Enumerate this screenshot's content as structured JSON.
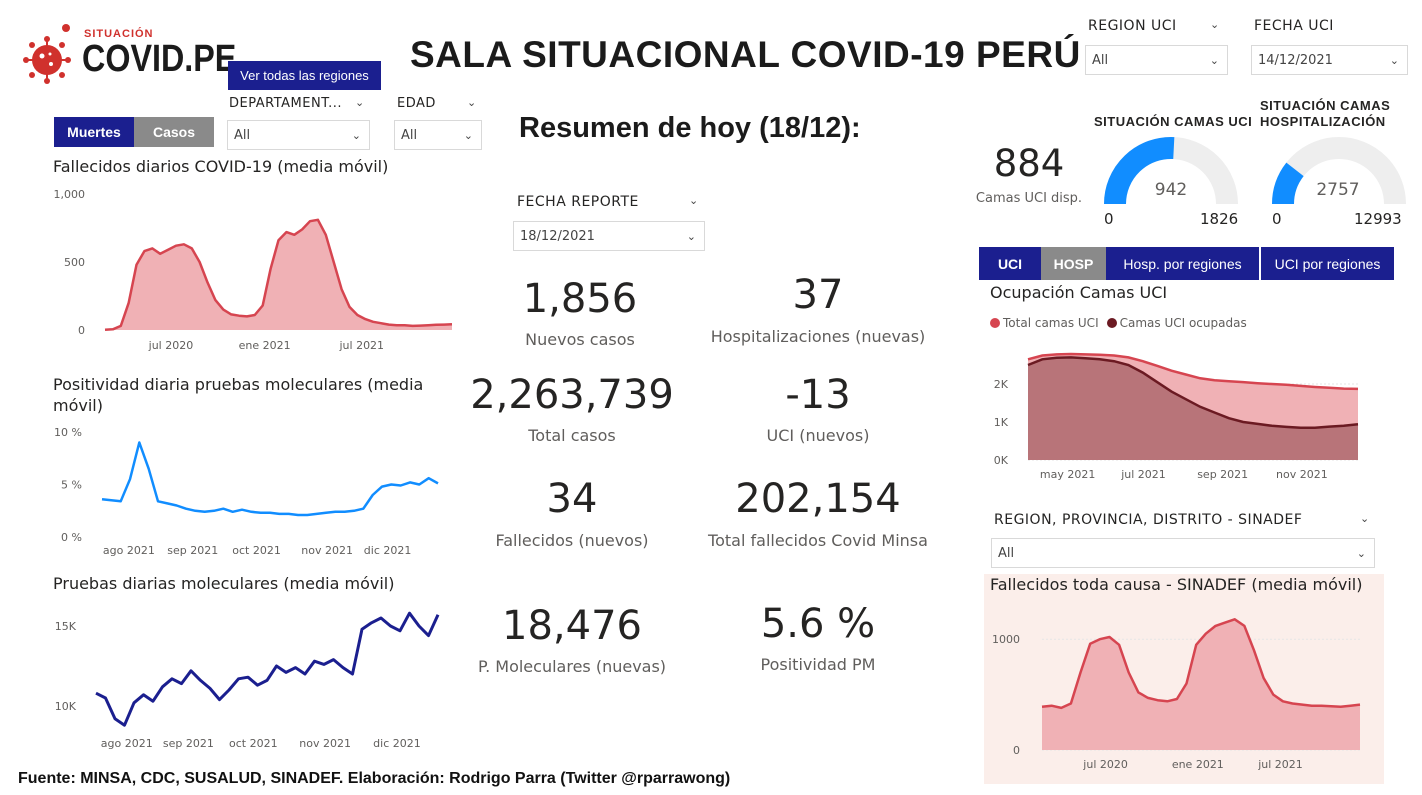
{
  "header": {
    "logo_top": "SITUACIÓN",
    "logo_main": "COVID.PE",
    "title": "SALA SITUACIONAL COVID-19 PERÚ",
    "all_regions_button": "Ver todas las regiones",
    "summary_title": "Resumen de hoy (18/12):"
  },
  "tabs_left": {
    "deaths": "Muertes",
    "cases": "Casos"
  },
  "slicers": {
    "departamento": {
      "label": "DEPARTAMENT...",
      "value": "All"
    },
    "edad": {
      "label": "EDAD",
      "value": "All"
    },
    "region_uci": {
      "label": "REGION UCI",
      "value": "All"
    },
    "fecha_uci": {
      "label": "FECHA UCI",
      "value": "14/12/2021"
    },
    "fecha_reporte": {
      "label": "FECHA REPORTE",
      "value": "18/12/2021"
    },
    "sinadef_region": {
      "label": "REGION, PROVINCIA, DISTRITO - SINADEF",
      "value": "All"
    }
  },
  "kpis": [
    {
      "value": "1,856",
      "label": "Nuevos casos"
    },
    {
      "value": "37",
      "label": "Hospitalizaciones (nuevas)"
    },
    {
      "value": "2,263,739",
      "label": "Total casos"
    },
    {
      "value": "-13",
      "label": "UCI (nuevos)"
    },
    {
      "value": "34",
      "label": "Fallecidos  (nuevos)"
    },
    {
      "value": "202,154",
      "label": "Total fallecidos Covid Minsa"
    },
    {
      "value": "18,476",
      "label": "P. Moleculares (nuevas)"
    },
    {
      "value": "5.6 %",
      "label": "Positividad PM"
    }
  ],
  "uci_available": {
    "value": "884",
    "label": "Camas UCI disp."
  },
  "gauges": [
    {
      "title": "SITUACIÓN CAMAS UCI",
      "value": 942,
      "value_label": "942",
      "min": "0",
      "max": "1826",
      "max_value": 1826,
      "color": "#118dff"
    },
    {
      "title_line1": "SITUACIÓN CAMAS",
      "title_line2": "HOSPITALIZACIÓN",
      "value": 2757,
      "value_label": "2757",
      "min": "0",
      "max": "12993",
      "max_value": 12993,
      "color": "#118dff"
    }
  ],
  "tabs_right": {
    "uci": "UCI",
    "hosp": "HOSP",
    "hosp_regions": "Hosp. por regiones",
    "uci_regions": "UCI por regiones"
  },
  "colors": {
    "deaths": "#d64550",
    "deaths_fill": "#f0b1b5",
    "positivity": "#118dff",
    "tests": "#1b1f8f",
    "uci_occupied": "#6b1a22",
    "sinadef_bg": "#fbeeea",
    "navy": "#1b1f8f"
  },
  "footer": "Fuente: MINSA, CDC, SUSALUD, SINADEF. Elaboración: Rodrigo Parra (Twitter @rparrawong)",
  "chart_data": [
    {
      "id": "deaths",
      "type": "area",
      "title": "Fallecidos diarios COVID-19 (media móvil)",
      "y_ticks": [
        "1,000",
        "500",
        "0"
      ],
      "ylim": [
        0,
        1000
      ],
      "x_ticks": [
        "jul 2020",
        "ene 2021",
        "jul 2021"
      ],
      "x_tick_pos": [
        0.19,
        0.46,
        0.74
      ],
      "values": [
        2,
        5,
        30,
        200,
        480,
        580,
        600,
        560,
        590,
        620,
        630,
        600,
        500,
        350,
        220,
        150,
        115,
        105,
        100,
        110,
        180,
        450,
        660,
        720,
        700,
        740,
        800,
        810,
        700,
        500,
        300,
        170,
        110,
        80,
        60,
        50,
        40,
        35,
        35,
        30,
        32,
        35,
        38,
        40,
        42
      ]
    },
    {
      "id": "positivity",
      "type": "line",
      "title": "Positividad diaria pruebas moleculares (media móvil)",
      "y_ticks": [
        "10 %",
        "5 %",
        "0 %"
      ],
      "ylim": [
        0,
        10
      ],
      "x_ticks": [
        "ago 2021",
        "sep 2021",
        "oct 2021",
        "nov 2021",
        "dic 2021"
      ],
      "x_tick_pos": [
        0.08,
        0.27,
        0.46,
        0.67,
        0.85
      ],
      "values": [
        3.6,
        3.5,
        3.4,
        5.5,
        9.0,
        6.5,
        3.4,
        3.2,
        3.0,
        2.7,
        2.5,
        2.4,
        2.5,
        2.7,
        2.4,
        2.6,
        2.4,
        2.3,
        2.3,
        2.2,
        2.2,
        2.1,
        2.1,
        2.2,
        2.3,
        2.4,
        2.4,
        2.5,
        2.7,
        4.0,
        4.8,
        5.0,
        4.9,
        5.2,
        5.0,
        5.6,
        5.1
      ]
    },
    {
      "id": "tests",
      "type": "line",
      "title": "Pruebas diarias moleculares (media móvil)",
      "y_ticks": [
        "15K",
        "10K"
      ],
      "y_tick_values": [
        15000,
        10000
      ],
      "ylim": [
        8500,
        16000
      ],
      "x_ticks": [
        "ago 2021",
        "sep 2021",
        "oct 2021",
        "nov 2021",
        "dic 2021"
      ],
      "x_tick_pos": [
        0.09,
        0.27,
        0.46,
        0.67,
        0.88
      ],
      "values": [
        10800,
        10500,
        9200,
        8800,
        10200,
        10700,
        10300,
        11200,
        11700,
        11400,
        12200,
        11600,
        11100,
        10400,
        11000,
        11700,
        11800,
        11300,
        11600,
        12500,
        12100,
        12400,
        12000,
        12800,
        12600,
        12900,
        12400,
        12000,
        14800,
        15200,
        15500,
        15000,
        14700,
        15800,
        15000,
        14400,
        15700
      ]
    },
    {
      "id": "uci",
      "type": "area",
      "title": "Ocupación Camas UCI",
      "legend": [
        "Total camas UCI",
        "Camas UCI ocupadas"
      ],
      "y_ticks": [
        "2K",
        "1K",
        "0K"
      ],
      "ylim": [
        0,
        3000
      ],
      "x_ticks": [
        "may 2021",
        "jul 2021",
        "sep 2021",
        "nov 2021"
      ],
      "x_tick_pos": [
        0.12,
        0.35,
        0.59,
        0.83
      ],
      "series": [
        {
          "name": "Total camas UCI",
          "values": [
            2650,
            2750,
            2780,
            2790,
            2780,
            2770,
            2750,
            2700,
            2600,
            2480,
            2350,
            2250,
            2150,
            2100,
            2070,
            2050,
            2020,
            2000,
            1980,
            1950,
            1920,
            1900,
            1880,
            1870
          ]
        },
        {
          "name": "Camas UCI ocupadas",
          "values": [
            2500,
            2650,
            2690,
            2700,
            2680,
            2650,
            2600,
            2500,
            2300,
            2050,
            1800,
            1600,
            1400,
            1250,
            1100,
            1000,
            950,
            900,
            870,
            850,
            850,
            880,
            900,
            940
          ]
        }
      ]
    },
    {
      "id": "sinadef",
      "type": "area",
      "title": "Fallecidos toda causa - SINADEF (media móvil)",
      "y_ticks": [
        "1000",
        "0"
      ],
      "y_tick_values": [
        1000,
        0
      ],
      "ylim": [
        0,
        1300
      ],
      "x_ticks": [
        "jul 2020",
        "ene 2021",
        "jul 2021"
      ],
      "x_tick_pos": [
        0.2,
        0.49,
        0.75
      ],
      "values": [
        390,
        400,
        380,
        420,
        700,
        960,
        1000,
        1020,
        950,
        700,
        520,
        470,
        450,
        440,
        460,
        600,
        950,
        1050,
        1120,
        1150,
        1180,
        1120,
        900,
        650,
        500,
        440,
        420,
        410,
        400,
        400,
        395,
        390,
        400,
        410
      ]
    }
  ]
}
